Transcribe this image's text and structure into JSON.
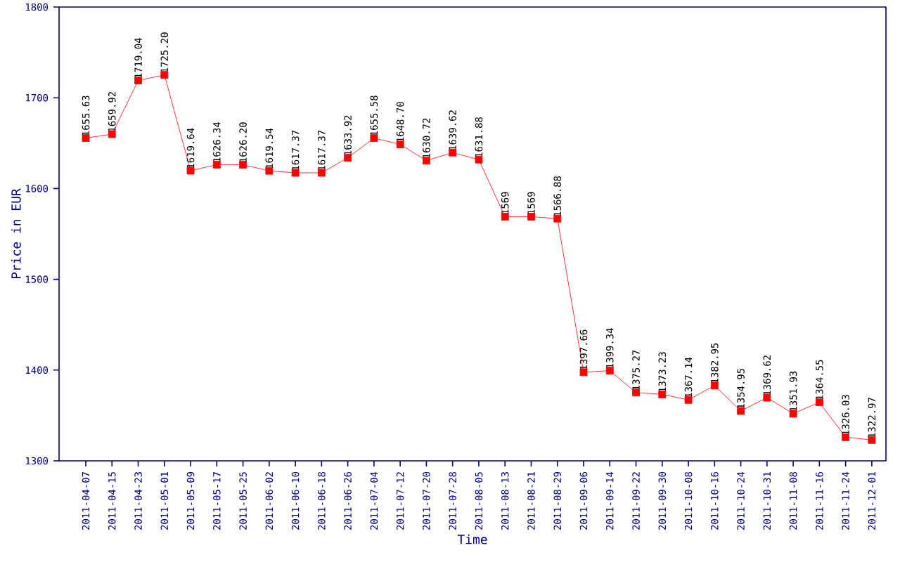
{
  "chart_data": {
    "type": "line",
    "xlabel": "Time",
    "ylabel": "Price in EUR",
    "categories": [
      "2011-04-07",
      "2011-04-15",
      "2011-04-23",
      "2011-05-01",
      "2011-05-09",
      "2011-05-17",
      "2011-05-25",
      "2011-06-02",
      "2011-06-10",
      "2011-06-18",
      "2011-06-26",
      "2011-07-04",
      "2011-07-12",
      "2011-07-20",
      "2011-07-28",
      "2011-08-05",
      "2011-08-13",
      "2011-08-21",
      "2011-08-29",
      "2011-09-06",
      "2011-09-14",
      "2011-09-22",
      "2011-09-30",
      "2011-10-08",
      "2011-10-16",
      "2011-10-24",
      "2011-10-31",
      "2011-11-08",
      "2011-11-16",
      "2011-11-24",
      "2011-12-01"
    ],
    "values": [
      1655.63,
      1659.92,
      1719.04,
      1725.2,
      1619.64,
      1626.34,
      1626.2,
      1619.54,
      1617.37,
      1617.37,
      1633.92,
      1655.58,
      1648.7,
      1630.72,
      1639.62,
      1631.88,
      1569,
      1569,
      1566.88,
      1397.66,
      1399.34,
      1375.27,
      1373.23,
      1367.14,
      1382.95,
      1354.95,
      1369.62,
      1351.93,
      1364.55,
      1326.03,
      1322.97
    ],
    "value_labels": [
      "1655.63",
      "1659.92",
      "1719.04",
      "1725.20",
      "1619.64",
      "1626.34",
      "1626.20",
      "1619.54",
      "1617.37",
      "1617.37",
      "1633.92",
      "1655.58",
      "1648.70",
      "1630.72",
      "1639.62",
      "1631.88",
      "1569",
      "1569",
      "1566.88",
      "1397.66",
      "1399.34",
      "1375.27",
      "1373.23",
      "1367.14",
      "1382.95",
      "1354.95",
      "1369.62",
      "1351.93",
      "1364.55",
      "1326.03",
      "1322.97"
    ],
    "color": "#ff0000",
    "marker": "square",
    "line_style": "solid",
    "grid": false,
    "ylim": [
      1300,
      1800
    ],
    "yticks": [
      1300,
      1400,
      1500,
      1600,
      1700,
      1800
    ]
  }
}
